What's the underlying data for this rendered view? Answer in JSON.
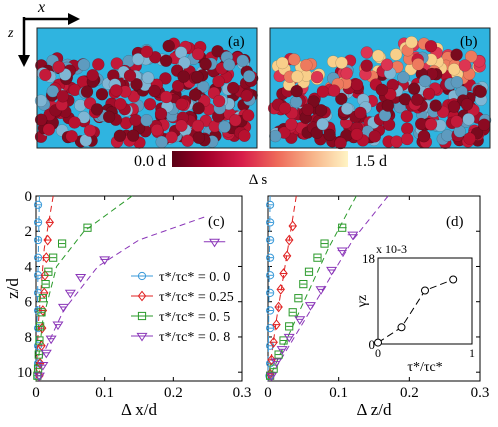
{
  "axes_indicator": {
    "x_label": "x",
    "z_label": "z"
  },
  "top_panels": {
    "a": {
      "label": "(a)"
    },
    "b": {
      "label": "(b)"
    }
  },
  "colorbar": {
    "min_label": "0.0 d",
    "max_label": "1.5 d",
    "title": "Δ s",
    "colors": [
      "#5a0015",
      "#a3002a",
      "#d81e4a",
      "#ee6a5a",
      "#f7b48a",
      "#fff4c4"
    ]
  },
  "chart_data": [
    {
      "id": "c",
      "panel_label": "(c)",
      "type": "scatter",
      "xlabel": "Δ x/d",
      "ylabel": "z/d",
      "xlim": [
        0,
        0.3
      ],
      "ylim": [
        10.5,
        0
      ],
      "x_ticks": [
        "0",
        "0.1",
        "0.2",
        "0.3"
      ],
      "y_ticks": [
        "0",
        "2",
        "4",
        "6",
        "8",
        "10"
      ],
      "legend": {
        "placement": "center-right",
        "entries": [
          "τ*/τc* = 0. 0",
          "τ*/τc* = 0.25",
          "τ*/τc* = 0. 5",
          "τ*/τc* = 0. 8"
        ]
      },
      "series": [
        {
          "name": "τ*/τc* = 0. 0",
          "marker": "circle",
          "color": "#3a9ad9",
          "points": [
            [
              0.003,
              0.5
            ],
            [
              0.003,
              1.5
            ],
            [
              0.003,
              2.5
            ],
            [
              0.003,
              3.5
            ],
            [
              0.003,
              4.5
            ],
            [
              0.003,
              5.5
            ],
            [
              0.003,
              6.5
            ],
            [
              0.003,
              7.5
            ],
            [
              0.003,
              8.5
            ],
            [
              0.003,
              9.5
            ],
            [
              0.002,
              10.2
            ]
          ],
          "fit": [
            [
              0.005,
              0
            ],
            [
              0.0,
              10.5
            ]
          ]
        },
        {
          "name": "τ*/τc* = 0.25",
          "marker": "diamond",
          "color": "#e02020",
          "points": [
            [
              0.02,
              1.5
            ],
            [
              0.017,
              2.5
            ],
            [
              0.015,
              3.5
            ],
            [
              0.013,
              4.5
            ],
            [
              0.012,
              5.5
            ],
            [
              0.01,
              6.5
            ],
            [
              0.009,
              7.5
            ],
            [
              0.008,
              8.5
            ],
            [
              0.006,
              9.5
            ],
            [
              0.005,
              10.2
            ]
          ],
          "fit": [
            [
              0.025,
              0
            ],
            [
              0.012,
              3
            ],
            [
              0.004,
              7
            ],
            [
              0.0,
              10.5
            ]
          ]
        },
        {
          "name": "τ*/τc* = 0. 5",
          "marker": "square",
          "color": "#2a9a2a",
          "points": [
            [
              0.075,
              1.8
            ],
            [
              0.038,
              2.7
            ],
            [
              0.025,
              3.5
            ],
            [
              0.018,
              4.3
            ],
            [
              0.014,
              5.0
            ],
            [
              0.01,
              5.8
            ],
            [
              0.008,
              6.6
            ],
            [
              0.006,
              7.4
            ],
            [
              0.005,
              8.2
            ],
            [
              0.004,
              9.0
            ],
            [
              0.003,
              9.8
            ],
            [
              0.002,
              10.2
            ]
          ],
          "fit": [
            [
              0.14,
              0
            ],
            [
              0.07,
              2
            ],
            [
              0.03,
              4
            ],
            [
              0.01,
              7
            ],
            [
              0.0,
              10.5
            ]
          ]
        },
        {
          "name": "τ*/τc* = 0. 8",
          "marker": "triangle-down",
          "color": "#8a35b8",
          "points": [
            [
              0.26,
              2.6
            ],
            [
              0.1,
              3.6
            ],
            [
              0.065,
              4.6
            ],
            [
              0.05,
              5.5
            ],
            [
              0.04,
              6.3
            ],
            [
              0.032,
              7.3
            ],
            [
              0.022,
              8.1
            ],
            [
              0.015,
              8.9
            ],
            [
              0.01,
              9.6
            ],
            [
              0.005,
              10.2
            ]
          ],
          "fit": [
            [
              0.245,
              1.2
            ],
            [
              0.15,
              2.5
            ],
            [
              0.09,
              4
            ],
            [
              0.04,
              6.5
            ],
            [
              0.01,
              9
            ],
            [
              0.0,
              10.5
            ]
          ]
        }
      ]
    },
    {
      "id": "d",
      "panel_label": "(d)",
      "type": "scatter",
      "xlabel": "Δ z/d",
      "ylabel": "",
      "xlim": [
        0,
        0.3
      ],
      "ylim": [
        10.5,
        0
      ],
      "x_ticks": [
        "0",
        "0.1",
        "0.2",
        "0.3"
      ],
      "y_ticks": [],
      "series": [
        {
          "name": "τ*/τc* = 0. 0",
          "marker": "circle",
          "color": "#3a9ad9",
          "points": [
            [
              0.003,
              0.5
            ],
            [
              0.003,
              1.5
            ],
            [
              0.003,
              2.5
            ],
            [
              0.003,
              3.5
            ],
            [
              0.003,
              4.5
            ],
            [
              0.003,
              5.5
            ],
            [
              0.003,
              6.5
            ],
            [
              0.003,
              7.5
            ],
            [
              0.003,
              8.5
            ],
            [
              0.003,
              9.5
            ],
            [
              0.002,
              10.2
            ]
          ],
          "fit": [
            [
              0.003,
              0
            ],
            [
              0.0,
              10.5
            ]
          ]
        },
        {
          "name": "τ*/τc* = 0.25",
          "marker": "diamond",
          "color": "#e02020",
          "points": [
            [
              0.035,
              1.7
            ],
            [
              0.03,
              2.5
            ],
            [
              0.027,
              3.4
            ],
            [
              0.022,
              4.4
            ],
            [
              0.018,
              5.3
            ],
            [
              0.015,
              6.3
            ],
            [
              0.012,
              7.3
            ],
            [
              0.008,
              8.3
            ],
            [
              0.005,
              9.3
            ],
            [
              0.003,
              10.1
            ]
          ],
          "fit": [
            [
              0.04,
              0
            ],
            [
              0.026,
              3.5
            ],
            [
              0.012,
              7
            ],
            [
              0.0,
              10.5
            ]
          ]
        },
        {
          "name": "τ*/τc* = 0. 5",
          "marker": "square",
          "color": "#2a9a2a",
          "points": [
            [
              0.105,
              1.8
            ],
            [
              0.08,
              2.7
            ],
            [
              0.07,
              3.5
            ],
            [
              0.058,
              4.3
            ],
            [
              0.05,
              5.0
            ],
            [
              0.043,
              5.8
            ],
            [
              0.035,
              6.6
            ],
            [
              0.03,
              7.4
            ],
            [
              0.022,
              8.2
            ],
            [
              0.015,
              9.0
            ],
            [
              0.008,
              9.8
            ],
            [
              0.003,
              10.2
            ]
          ],
          "fit": [
            [
              0.125,
              0
            ],
            [
              0.085,
              3
            ],
            [
              0.045,
              6.5
            ],
            [
              0.0,
              10.5
            ]
          ]
        },
        {
          "name": "τ*/τc* = 0. 8",
          "marker": "triangle-down",
          "color": "#8a35b8",
          "points": [
            [
              0.12,
              2.2
            ],
            [
              0.105,
              3.1
            ],
            [
              0.09,
              4.2
            ],
            [
              0.075,
              5.3
            ],
            [
              0.06,
              6.2
            ],
            [
              0.045,
              7.0
            ],
            [
              0.03,
              8.0
            ],
            [
              0.02,
              8.7
            ],
            [
              0.012,
              9.4
            ],
            [
              0.005,
              10.2
            ]
          ],
          "fit": [
            [
              0.17,
              0
            ],
            [
              0.12,
              2.5
            ],
            [
              0.06,
              6.5
            ],
            [
              0.0,
              10.5
            ]
          ]
        }
      ],
      "inset": {
        "type": "line",
        "ylabel": "γz",
        "xlabel": "τ*/τc*",
        "y_multiplier": "x 10-3",
        "xlim": [
          0,
          1
        ],
        "ylim": [
          0,
          18
        ],
        "x_ticks": [
          "0",
          "1"
        ],
        "y_ticks": [
          "0",
          "18"
        ],
        "x": [
          0,
          0.25,
          0.5,
          0.8
        ],
        "values": [
          0.3,
          3.5,
          11.2,
          13.5
        ]
      }
    }
  ]
}
